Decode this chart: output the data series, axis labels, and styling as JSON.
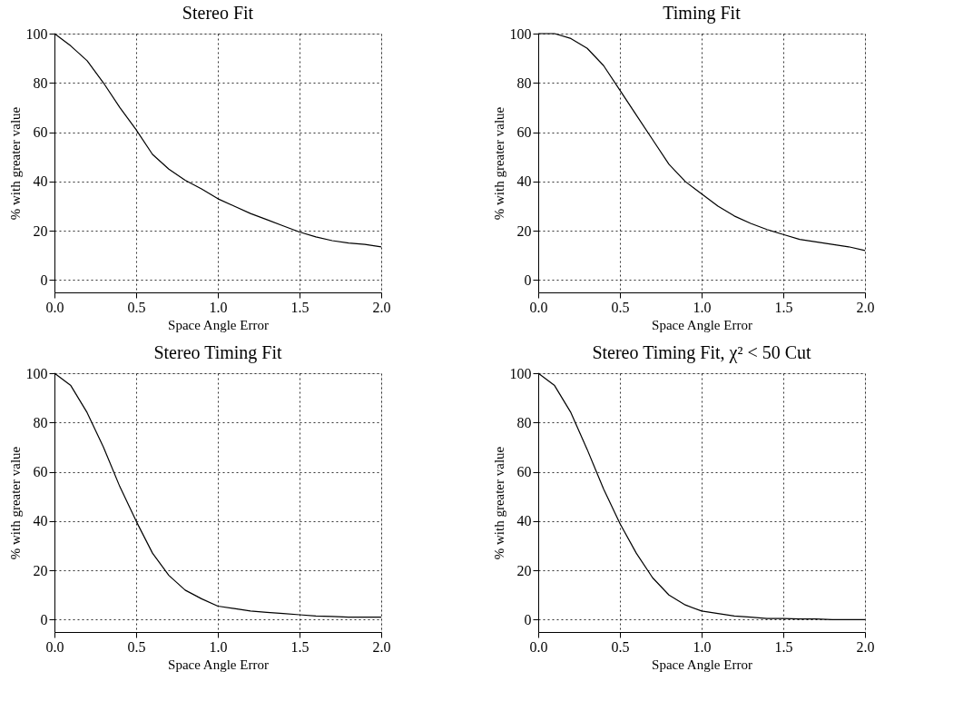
{
  "chart_data": [
    {
      "type": "line",
      "title": "Stereo Fit",
      "xlabel": "Space Angle Error",
      "ylabel": "% with greater value",
      "color": "#000000",
      "grid": true,
      "line_style": "solid",
      "x": [
        0,
        0.1,
        0.2,
        0.3,
        0.4,
        0.5,
        0.6,
        0.7,
        0.8,
        0.9,
        1.0,
        1.1,
        1.2,
        1.3,
        1.4,
        1.5,
        1.6,
        1.7,
        1.8,
        1.9,
        2.0
      ],
      "values": [
        100,
        95,
        89,
        80,
        70,
        61,
        51,
        45,
        40.5,
        37,
        33,
        30,
        27,
        24.5,
        22,
        19.5,
        17.5,
        16,
        15,
        14.5,
        13.5
      ],
      "xlim": [
        0,
        2
      ],
      "ylim": [
        -5,
        100
      ],
      "xticks": [
        {
          "value": 0,
          "label": "0.0"
        },
        {
          "value": 0.5,
          "label": "0.5"
        },
        {
          "value": 1,
          "label": "1.0"
        },
        {
          "value": 1.5,
          "label": "1.5"
        },
        {
          "value": 2,
          "label": "2.0"
        }
      ],
      "yticks": [
        0,
        20,
        40,
        60,
        80,
        100
      ]
    },
    {
      "type": "line",
      "title": "Timing Fit",
      "xlabel": "Space Angle Error",
      "ylabel": "% with greater value",
      "color": "#000000",
      "grid": true,
      "line_style": "solid",
      "x": [
        0,
        0.1,
        0.2,
        0.3,
        0.4,
        0.5,
        0.6,
        0.7,
        0.8,
        0.9,
        1.0,
        1.1,
        1.2,
        1.3,
        1.4,
        1.5,
        1.6,
        1.7,
        1.8,
        1.9,
        2.0
      ],
      "values": [
        100,
        100,
        98,
        94,
        87,
        77,
        67,
        57,
        47,
        40,
        35,
        30,
        26,
        23,
        20.5,
        18.5,
        16.5,
        15.5,
        14.5,
        13.5,
        12
      ],
      "xlim": [
        0,
        2
      ],
      "ylim": [
        -5,
        100
      ],
      "xticks": [
        {
          "value": 0,
          "label": "0.0"
        },
        {
          "value": 0.5,
          "label": "0.5"
        },
        {
          "value": 1,
          "label": "1.0"
        },
        {
          "value": 1.5,
          "label": "1.5"
        },
        {
          "value": 2,
          "label": "2.0"
        }
      ],
      "yticks": [
        0,
        20,
        40,
        60,
        80,
        100
      ]
    },
    {
      "type": "line",
      "title": "Stereo Timing Fit",
      "xlabel": "Space Angle Error",
      "ylabel": "% with greater value",
      "color": "#000000",
      "grid": true,
      "line_style": "solid",
      "x": [
        0,
        0.1,
        0.2,
        0.3,
        0.4,
        0.5,
        0.6,
        0.7,
        0.8,
        0.9,
        1.0,
        1.1,
        1.2,
        1.3,
        1.4,
        1.5,
        1.6,
        1.7,
        1.8,
        1.9,
        2.0
      ],
      "values": [
        100,
        95,
        84,
        70,
        54,
        40,
        27,
        18,
        12,
        8.5,
        5.5,
        4.5,
        3.5,
        3,
        2.5,
        2,
        1.5,
        1.3,
        1,
        1,
        1
      ],
      "xlim": [
        0,
        2
      ],
      "ylim": [
        -5,
        100
      ],
      "xticks": [
        {
          "value": 0,
          "label": "0.0"
        },
        {
          "value": 0.5,
          "label": "0.5"
        },
        {
          "value": 1,
          "label": "1.0"
        },
        {
          "value": 1.5,
          "label": "1.5"
        },
        {
          "value": 2,
          "label": "2.0"
        }
      ],
      "yticks": [
        0,
        20,
        40,
        60,
        80,
        100
      ]
    },
    {
      "type": "line",
      "title": "Stereo Timing Fit, χ² < 50 Cut",
      "xlabel": "Space Angle Error",
      "ylabel": "% with greater value",
      "color": "#000000",
      "grid": true,
      "line_style": "solid",
      "x": [
        0,
        0.1,
        0.2,
        0.3,
        0.4,
        0.5,
        0.6,
        0.7,
        0.8,
        0.9,
        1.0,
        1.1,
        1.2,
        1.3,
        1.4,
        1.5,
        1.6,
        1.7,
        1.8,
        1.9,
        2.0
      ],
      "values": [
        100,
        95,
        84,
        69,
        53,
        39,
        27,
        17,
        10,
        6,
        3.5,
        2.5,
        1.5,
        1,
        0.5,
        0.5,
        0.3,
        0.3,
        0,
        0,
        0
      ],
      "xlim": [
        0,
        2
      ],
      "ylim": [
        -5,
        100
      ],
      "xticks": [
        {
          "value": 0,
          "label": "0.0"
        },
        {
          "value": 0.5,
          "label": "0.5"
        },
        {
          "value": 1,
          "label": "1.0"
        },
        {
          "value": 1.5,
          "label": "1.5"
        },
        {
          "value": 2,
          "label": "2.0"
        }
      ],
      "yticks": [
        0,
        20,
        40,
        60,
        80,
        100
      ]
    }
  ]
}
